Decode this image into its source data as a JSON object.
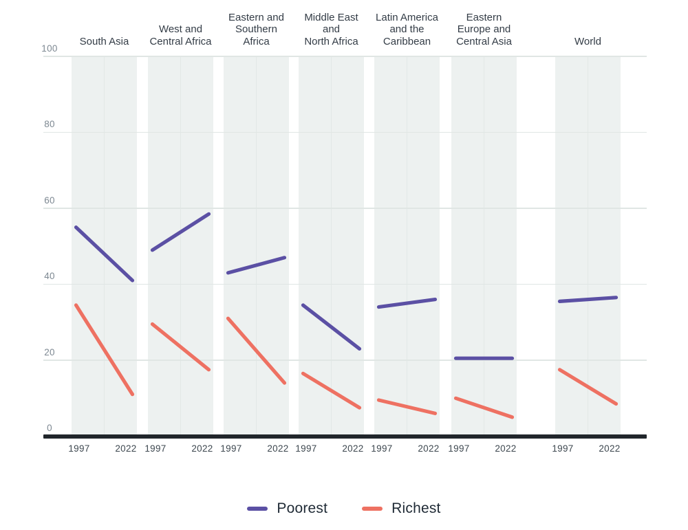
{
  "chart_data": {
    "type": "line",
    "description": "Small-multiple slope chart: two values (1997 vs 2022) per region for Poorest and Richest series, scale 0-100",
    "x_tick_labels": [
      "1997",
      "2022"
    ],
    "y_ticks": [
      0,
      20,
      40,
      60,
      80,
      100
    ],
    "ylim": [
      0,
      100
    ],
    "grid": "horizontal gridlines on, shaded column bands per region",
    "legend_position": "bottom-center",
    "legend": [
      {
        "name": "Poorest",
        "color": "#5b50a4"
      },
      {
        "name": "Richest",
        "color": "#ee7162"
      }
    ],
    "panels": [
      {
        "region": "South Asia",
        "title_lines": [
          "South Asia"
        ],
        "poorest": [
          55,
          41
        ],
        "richest": [
          34.5,
          11
        ]
      },
      {
        "region": "West and Central Africa",
        "title_lines": [
          "West and",
          "Central Africa"
        ],
        "poorest": [
          49,
          58.5
        ],
        "richest": [
          29.5,
          17.5
        ]
      },
      {
        "region": "Eastern and Southern Africa",
        "title_lines": [
          "Eastern and",
          "Southern",
          "Africa"
        ],
        "poorest": [
          43,
          47
        ],
        "richest": [
          31,
          14
        ]
      },
      {
        "region": "Middle East and North Africa",
        "title_lines": [
          "Middle East",
          "and",
          "North Africa"
        ],
        "poorest": [
          34.5,
          23
        ],
        "richest": [
          16.5,
          7.5
        ]
      },
      {
        "region": "Latin America and the Caribbean",
        "title_lines": [
          "Latin America",
          "and the",
          "Caribbean"
        ],
        "poorest": [
          34,
          36
        ],
        "richest": [
          9.5,
          6
        ]
      },
      {
        "region": "Eastern Europe and Central Asia",
        "title_lines": [
          "Eastern",
          "Europe and",
          "Central Asia"
        ],
        "poorest": [
          20.5,
          20.5
        ],
        "richest": [
          10,
          5
        ]
      },
      {
        "region": "World",
        "title_lines": [
          "World"
        ],
        "poorest": [
          35.5,
          36.5
        ],
        "richest": [
          17.5,
          8.5
        ]
      }
    ]
  },
  "colors": {
    "poorest_line": "#5b50a4",
    "richest_line": "#ee7162",
    "band_background": "#edf1f0",
    "gridline": "#e0e6e4",
    "axis_line": "#21262b",
    "y_label_text": "#7d8892",
    "x_label_text": "#3d474f",
    "title_text": "#333c46",
    "legend_text": "#1f2a35"
  }
}
